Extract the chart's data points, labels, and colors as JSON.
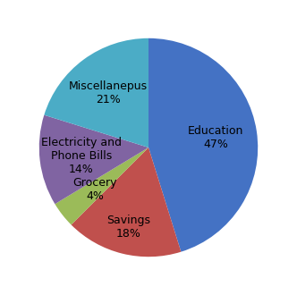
{
  "labels": [
    "Education",
    "Savings",
    "Grocery",
    "Electricity and\nPhone Bills",
    "Miscellanepus"
  ],
  "values": [
    47,
    18,
    4,
    14,
    21
  ],
  "colors": [
    "#4472C4",
    "#C0504D",
    "#9BBB59",
    "#8064A2",
    "#4BACC6"
  ],
  "startangle": 90,
  "counterclock": false,
  "label_fontsize": 9,
  "figsize": [
    3.32,
    3.3
  ],
  "dpi": 100,
  "label_radii": [
    0.62,
    0.75,
    0.62,
    0.62,
    0.62
  ]
}
